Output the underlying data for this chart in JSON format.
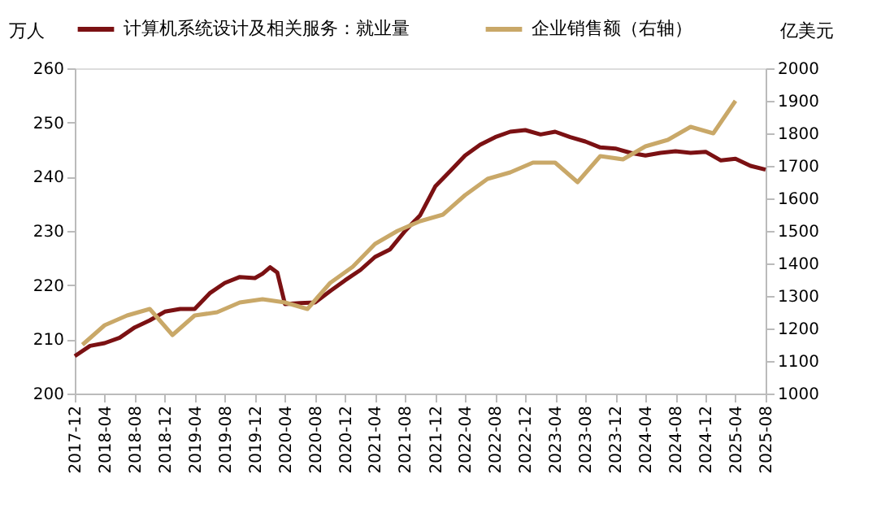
{
  "chart_data": {
    "type": "line",
    "xlabel": null,
    "ylabel": "万人",
    "y2label": "亿美元",
    "legend": "top",
    "grid": false,
    "marker": "none",
    "line_style": "solid",
    "xlim": [
      "2017-12",
      "2025-08"
    ],
    "xticks": [
      "2017-12",
      "2018-04",
      "2018-08",
      "2018-12",
      "2019-04",
      "2019-08",
      "2019-12",
      "2020-04",
      "2020-08",
      "2020-12",
      "2021-04",
      "2021-08",
      "2021-12",
      "2022-04",
      "2022-08",
      "2022-12",
      "2023-04",
      "2023-08",
      "2023-12",
      "2024-04",
      "2024-08",
      "2024-12",
      "2025-04",
      "2025-08"
    ],
    "ylim": [
      200,
      260
    ],
    "yticks": [
      200,
      210,
      220,
      230,
      240,
      250,
      260
    ],
    "y2lim": [
      1000,
      2000
    ],
    "y2ticks": [
      1000,
      1100,
      1200,
      1300,
      1400,
      1500,
      1600,
      1700,
      1800,
      1900,
      2000
    ],
    "series": [
      {
        "name": "计算机系统设计及相关服务：就业量",
        "color": "#7b1113",
        "x": [
          "2017-12",
          "2018-02",
          "2018-04",
          "2018-06",
          "2018-08",
          "2018-10",
          "2018-12",
          "2019-02",
          "2019-04",
          "2019-06",
          "2019-08",
          "2019-10",
          "2019-12",
          "2020-01",
          "2020-02",
          "2020-03",
          "2020-04",
          "2020-06",
          "2020-08",
          "2020-10",
          "2020-12",
          "2021-02",
          "2021-04",
          "2021-06",
          "2021-08",
          "2021-10",
          "2021-12",
          "2022-02",
          "2022-04",
          "2022-06",
          "2022-08",
          "2022-10",
          "2022-12",
          "2023-02",
          "2023-04",
          "2023-06",
          "2023-08",
          "2023-10",
          "2023-12",
          "2024-02",
          "2024-04",
          "2024-06",
          "2024-08",
          "2024-10",
          "2024-12",
          "2025-02",
          "2025-04",
          "2025-06",
          "2025-08"
        ],
        "values": [
          206.9,
          208.8,
          209.3,
          210.3,
          212.2,
          213.5,
          215.1,
          215.6,
          215.6,
          218.5,
          220.4,
          221.5,
          221.3,
          222.1,
          223.3,
          222.3,
          216.5,
          216.7,
          216.8,
          218.9,
          220.9,
          222.8,
          225.2,
          226.6,
          230.0,
          232.9,
          238.2,
          241.1,
          243.9,
          245.9,
          247.3,
          248.3,
          248.6,
          247.8,
          248.3,
          247.3,
          246.5,
          245.4,
          245.2,
          244.4,
          243.9,
          244.4,
          244.7,
          244.4,
          244.6,
          243.0,
          243.3,
          242.0,
          241.3
        ]
      },
      {
        "name": "企业销售额（右轴）",
        "color": "#c9a868",
        "axis": "y2",
        "x": [
          "2018-01",
          "2018-04",
          "2018-07",
          "2018-10",
          "2019-01",
          "2019-04",
          "2019-07",
          "2019-10",
          "2020-01",
          "2020-04",
          "2020-07",
          "2020-10",
          "2021-01",
          "2021-04",
          "2021-07",
          "2021-10",
          "2022-01",
          "2022-04",
          "2022-07",
          "2022-10",
          "2023-01",
          "2023-04",
          "2023-07",
          "2023-10",
          "2024-01",
          "2024-04",
          "2024-07",
          "2024-10",
          "2025-01",
          "2025-04"
        ],
        "values": [
          1150,
          1210,
          1240,
          1260,
          1180,
          1240,
          1250,
          1280,
          1290,
          1280,
          1260,
          1340,
          1390,
          1460,
          1500,
          1530,
          1550,
          1610,
          1660,
          1680,
          1710,
          1710,
          1650,
          1730,
          1720,
          1760,
          1780,
          1820,
          1800,
          1900
        ]
      }
    ]
  }
}
